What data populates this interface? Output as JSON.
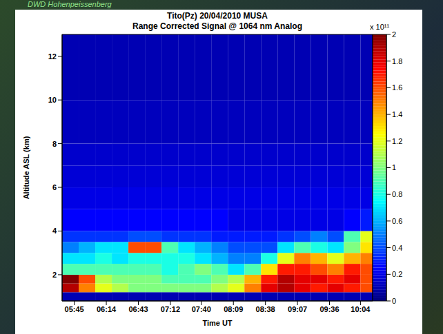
{
  "chart_data": {
    "type": "heatmap",
    "title": "Tito(Pz)  20/04/2010 MUSA",
    "subtitle": "Range Corrected Signal @ 1064 nm Analog",
    "annotation": "DWD Hohenpeissenberg",
    "x_label": "Time UT",
    "y_label": "Altitude ASL (km)",
    "xlim": [
      334,
      615
    ],
    "xticks": [
      {
        "value": 345,
        "label": "05:45"
      },
      {
        "value": 374,
        "label": "06:14"
      },
      {
        "value": 403,
        "label": "06:43"
      },
      {
        "value": 432,
        "label": "07:12"
      },
      {
        "value": 460,
        "label": "07:40"
      },
      {
        "value": 489,
        "label": "08:09"
      },
      {
        "value": 518,
        "label": "08:38"
      },
      {
        "value": 547,
        "label": "09:07"
      },
      {
        "value": 576,
        "label": "09:36"
      },
      {
        "value": 604,
        "label": "10:04"
      }
    ],
    "ylim": [
      0.8,
      13
    ],
    "yticks": [
      2,
      4,
      6,
      8,
      10,
      12
    ],
    "x_edges": [
      334,
      349,
      364,
      379,
      394,
      409,
      424,
      439,
      454,
      469,
      484,
      499,
      514,
      529,
      544,
      559,
      574,
      589,
      604,
      615
    ],
    "y_edges": [
      0.8,
      1.2,
      1.6,
      2.0,
      2.5,
      3.0,
      3.5,
      4.0,
      5.0,
      6.0,
      7.0,
      8.0,
      10.0,
      13.0
    ],
    "cells": [
      [
        0.1,
        0.1,
        0.1,
        0.1,
        0.1,
        0.1,
        0.1,
        0.1,
        0.1,
        0.1,
        0.1,
        0.1,
        0.1,
        0.1,
        0.1,
        0.1,
        0.1,
        0.1,
        0.1
      ],
      [
        1.9,
        1.5,
        1.2,
        1.1,
        1.0,
        1.0,
        1.0,
        1.0,
        1.0,
        1.1,
        1.2,
        1.5,
        1.8,
        1.9,
        1.8,
        1.7,
        1.8,
        1.7,
        1.6
      ],
      [
        2.0,
        1.6,
        1.1,
        1.0,
        1.0,
        1.0,
        0.9,
        0.9,
        0.9,
        1.0,
        1.1,
        1.4,
        1.7,
        1.9,
        1.8,
        1.8,
        1.7,
        1.8,
        1.6
      ],
      [
        0.9,
        0.9,
        0.9,
        0.9,
        0.9,
        0.9,
        0.8,
        0.9,
        1.0,
        0.9,
        0.7,
        0.9,
        1.3,
        1.7,
        1.7,
        1.6,
        1.5,
        1.7,
        1.6
      ],
      [
        0.7,
        0.7,
        0.8,
        0.7,
        0.8,
        0.8,
        0.8,
        0.8,
        0.7,
        0.6,
        0.5,
        0.5,
        0.8,
        1.2,
        1.5,
        1.4,
        1.2,
        1.4,
        1.5
      ],
      [
        0.5,
        0.6,
        0.7,
        0.7,
        1.6,
        1.6,
        0.9,
        0.7,
        0.6,
        0.5,
        0.4,
        0.4,
        0.4,
        0.7,
        0.9,
        0.8,
        0.7,
        1.0,
        1.3
      ],
      [
        0.35,
        0.35,
        0.35,
        0.35,
        0.4,
        0.4,
        0.35,
        0.35,
        0.35,
        0.3,
        0.3,
        0.3,
        0.3,
        0.35,
        0.4,
        0.5,
        0.4,
        0.9,
        1.2
      ],
      [
        0.25,
        0.25,
        0.25,
        0.25,
        0.25,
        0.25,
        0.25,
        0.25,
        0.25,
        0.25,
        0.2,
        0.2,
        0.2,
        0.2,
        0.2,
        0.2,
        0.2,
        0.25,
        0.3
      ],
      [
        0.2,
        0.2,
        0.2,
        0.2,
        0.2,
        0.2,
        0.2,
        0.2,
        0.2,
        0.2,
        0.2,
        0.2,
        0.2,
        0.2,
        0.2,
        0.2,
        0.2,
        0.2,
        0.2
      ],
      [
        0.17,
        0.17,
        0.17,
        0.17,
        0.17,
        0.17,
        0.17,
        0.17,
        0.17,
        0.17,
        0.17,
        0.17,
        0.17,
        0.17,
        0.17,
        0.17,
        0.17,
        0.17,
        0.17
      ],
      [
        0.15,
        0.15,
        0.15,
        0.15,
        0.15,
        0.15,
        0.15,
        0.15,
        0.15,
        0.15,
        0.15,
        0.15,
        0.15,
        0.15,
        0.15,
        0.15,
        0.15,
        0.15,
        0.15
      ],
      [
        0.12,
        0.12,
        0.12,
        0.12,
        0.12,
        0.12,
        0.12,
        0.12,
        0.12,
        0.12,
        0.12,
        0.12,
        0.12,
        0.12,
        0.12,
        0.12,
        0.12,
        0.12,
        0.12
      ],
      [
        0.1,
        0.1,
        0.1,
        0.1,
        0.1,
        0.1,
        0.1,
        0.1,
        0.1,
        0.1,
        0.1,
        0.1,
        0.1,
        0.1,
        0.1,
        0.1,
        0.1,
        0.1,
        0.1
      ]
    ],
    "colorbar": {
      "range": [
        0,
        2
      ],
      "ticks": [
        0,
        0.2,
        0.4,
        0.6,
        0.8,
        1,
        1.2,
        1.4,
        1.6,
        1.8,
        2
      ],
      "label": "x 10¹¹"
    }
  }
}
